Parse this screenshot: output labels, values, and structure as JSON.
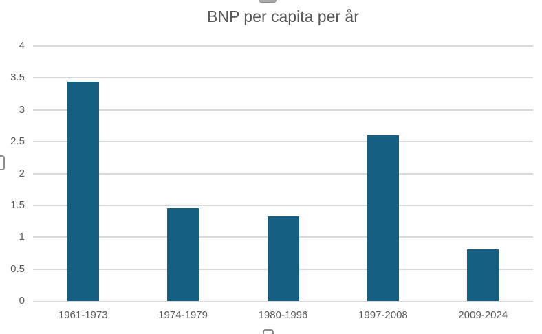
{
  "chart_data": {
    "type": "bar",
    "title": "BNP per capita per år",
    "categories": [
      "1961-1973",
      "1974-1979",
      "1980-1996",
      "1997-2008",
      "2009-2024"
    ],
    "values": [
      3.44,
      1.46,
      1.33,
      2.6,
      0.81
    ],
    "xlabel": "",
    "ylabel": "",
    "ylim": [
      0,
      4
    ],
    "ytick_step": 0.5,
    "ytick_labels": [
      "0",
      "0.5",
      "1",
      "1.5",
      "2",
      "2.5",
      "3",
      "3.5",
      "4"
    ],
    "grid": true,
    "legend": false,
    "bar_color": "#156082",
    "text_color": "#595959",
    "gridline_color": "#D9D9D9",
    "background_color": "#FFFFFF"
  }
}
